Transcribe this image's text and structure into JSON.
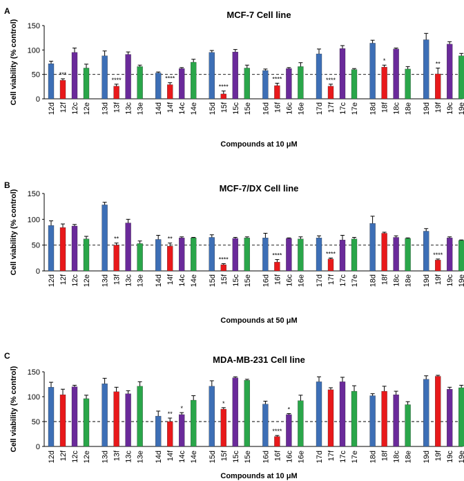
{
  "colors": {
    "d": "#3d6fb6",
    "f": "#e8191b",
    "c": "#6a2a9a",
    "e": "#2aa64a",
    "axis": "#000000",
    "err": "#000000"
  },
  "chart_data": [
    {
      "letter": "A",
      "type": "bar",
      "title": "MCF-7 Cell line",
      "xlabel": "Compounds at 10 μM",
      "ylabel": "Cell viability (% control)",
      "ylim": [
        0,
        150
      ],
      "yticks": [
        "0",
        "50",
        "100",
        "150"
      ],
      "reference_line": 50,
      "groups": [
        {
          "labels": [
            "12d",
            "12f",
            "12c",
            "12e"
          ],
          "values": [
            72,
            38,
            95,
            63
          ],
          "errors": [
            5,
            3,
            9,
            8
          ],
          "sig": [
            "",
            "***",
            "",
            ""
          ]
        },
        {
          "labels": [
            "13d",
            "13f",
            "13c",
            "13e"
          ],
          "values": [
            88,
            26,
            91,
            66
          ],
          "errors": [
            10,
            4,
            5,
            3
          ],
          "sig": [
            "",
            "****",
            "",
            ""
          ]
        },
        {
          "labels": [
            "14d",
            "14f",
            "14c",
            "14e"
          ],
          "values": [
            53,
            29,
            62,
            75
          ],
          "errors": [
            2,
            4,
            2,
            6
          ],
          "sig": [
            "",
            "****",
            "",
            ""
          ]
        },
        {
          "labels": [
            "15d",
            "15f",
            "15c",
            "15e"
          ],
          "values": [
            95,
            10,
            96,
            63
          ],
          "errors": [
            4,
            6,
            5,
            6
          ],
          "sig": [
            "",
            "****",
            "",
            ""
          ]
        },
        {
          "labels": [
            "16d",
            "16f",
            "16c",
            "16e"
          ],
          "values": [
            58,
            27,
            62,
            66
          ],
          "errors": [
            3,
            5,
            2,
            8
          ],
          "sig": [
            "",
            "****",
            "",
            ""
          ]
        },
        {
          "labels": [
            "17d",
            "17f",
            "17c",
            "17e"
          ],
          "values": [
            92,
            26,
            103,
            60
          ],
          "errors": [
            10,
            4,
            6,
            2
          ],
          "sig": [
            "",
            "****",
            "",
            ""
          ]
        },
        {
          "labels": [
            "18d",
            "18f",
            "18c",
            "18e"
          ],
          "values": [
            114,
            65,
            102,
            61
          ],
          "errors": [
            6,
            4,
            2,
            5
          ],
          "sig": [
            "",
            "*",
            "",
            ""
          ]
        },
        {
          "labels": [
            "19d",
            "19f",
            "19c",
            "19e"
          ],
          "values": [
            121,
            51,
            112,
            88
          ],
          "errors": [
            13,
            12,
            5,
            5
          ],
          "sig": [
            "",
            "**",
            "",
            ""
          ]
        }
      ]
    },
    {
      "letter": "B",
      "type": "bar",
      "title": "MCF-7/DX Cell line",
      "xlabel": "Compounds at 50 μM",
      "ylabel": "Cell viability (% control)",
      "ylim": [
        0,
        150
      ],
      "yticks": [
        "0",
        "50",
        "100",
        "150"
      ],
      "reference_line": 50,
      "groups": [
        {
          "labels": [
            "12d",
            "12f",
            "12c",
            "12e"
          ],
          "values": [
            88,
            84,
            87,
            62
          ],
          "errors": [
            9,
            7,
            3,
            5
          ],
          "sig": [
            "",
            "",
            "",
            ""
          ]
        },
        {
          "labels": [
            "13d",
            "13f",
            "13c",
            "13e"
          ],
          "values": [
            128,
            50,
            93,
            53
          ],
          "errors": [
            5,
            4,
            7,
            5
          ],
          "sig": [
            "",
            "**",
            "",
            ""
          ]
        },
        {
          "labels": [
            "14d",
            "14f",
            "14c",
            "14e"
          ],
          "values": [
            61,
            48,
            64,
            64
          ],
          "errors": [
            8,
            6,
            2,
            1
          ],
          "sig": [
            "",
            "**",
            "",
            ""
          ]
        },
        {
          "labels": [
            "15d",
            "15f",
            "15c",
            "15e"
          ],
          "values": [
            65,
            12,
            63,
            64
          ],
          "errors": [
            5,
            2,
            2,
            2
          ],
          "sig": [
            "",
            "****",
            "",
            ""
          ]
        },
        {
          "labels": [
            "16d",
            "16f",
            "16c",
            "16e"
          ],
          "values": [
            64,
            17,
            63,
            62
          ],
          "errors": [
            9,
            5,
            1,
            4
          ],
          "sig": [
            "",
            "****",
            "",
            ""
          ]
        },
        {
          "labels": [
            "17d",
            "17f",
            "17c",
            "17e"
          ],
          "values": [
            64,
            23,
            60,
            62
          ],
          "errors": [
            4,
            2,
            9,
            3
          ],
          "sig": [
            "",
            "****",
            "",
            ""
          ]
        },
        {
          "labels": [
            "18d",
            "18f",
            "18c",
            "18e"
          ],
          "values": [
            92,
            73,
            65,
            63
          ],
          "errors": [
            14,
            2,
            3,
            1
          ],
          "sig": [
            "",
            "",
            "",
            ""
          ]
        },
        {
          "labels": [
            "19d",
            "19f",
            "19c",
            "19e"
          ],
          "values": [
            77,
            21,
            64,
            59
          ],
          "errors": [
            5,
            2,
            2,
            1
          ],
          "sig": [
            "",
            "****",
            "",
            ""
          ]
        }
      ]
    },
    {
      "letter": "C",
      "type": "bar",
      "title": "MDA-MB-231 Cell line",
      "xlabel": "Compounds at 10 μM",
      "ylabel": "Cell viability (% control)",
      "ylim": [
        0,
        150
      ],
      "yticks": [
        "0",
        "50",
        "100",
        "150"
      ],
      "reference_line": 50,
      "groups": [
        {
          "labels": [
            "12d",
            "12f",
            "12c",
            "12e"
          ],
          "values": [
            119,
            104,
            120,
            96
          ],
          "errors": [
            10,
            11,
            3,
            7
          ],
          "sig": [
            "",
            "",
            "",
            ""
          ]
        },
        {
          "labels": [
            "13d",
            "13f",
            "13c",
            "13e"
          ],
          "values": [
            126,
            110,
            106,
            121
          ],
          "errors": [
            11,
            9,
            6,
            9
          ],
          "sig": [
            "",
            "",
            "",
            ""
          ]
        },
        {
          "labels": [
            "14d",
            "14f",
            "14c",
            "14e"
          ],
          "values": [
            61,
            50,
            64,
            93
          ],
          "errors": [
            10,
            7,
            4,
            9
          ],
          "sig": [
            "",
            "**",
            "*",
            ""
          ]
        },
        {
          "labels": [
            "15d",
            "15f",
            "15c",
            "15e"
          ],
          "values": [
            121,
            75,
            138,
            133
          ],
          "errors": [
            11,
            3,
            2,
            2
          ],
          "sig": [
            "",
            "*",
            "",
            ""
          ]
        },
        {
          "labels": [
            "16d",
            "16f",
            "16c",
            "16e"
          ],
          "values": [
            85,
            20,
            64,
            92
          ],
          "errors": [
            6,
            2,
            2,
            11
          ],
          "sig": [
            "",
            "****",
            "*",
            ""
          ]
        },
        {
          "labels": [
            "17d",
            "17f",
            "17c",
            "17e"
          ],
          "values": [
            130,
            114,
            130,
            111
          ],
          "errors": [
            10,
            4,
            9,
            11
          ],
          "sig": [
            "",
            "",
            "",
            ""
          ]
        },
        {
          "labels": [
            "18d",
            "18f",
            "18c",
            "18e"
          ],
          "values": [
            102,
            111,
            104,
            84
          ],
          "errors": [
            4,
            10,
            7,
            6
          ],
          "sig": [
            "",
            "",
            "",
            ""
          ]
        },
        {
          "labels": [
            "19d",
            "19f",
            "19c",
            "19e"
          ],
          "values": [
            135,
            141,
            115,
            118
          ],
          "errors": [
            7,
            2,
            4,
            5
          ],
          "sig": [
            "",
            "",
            "",
            ""
          ]
        }
      ]
    }
  ]
}
